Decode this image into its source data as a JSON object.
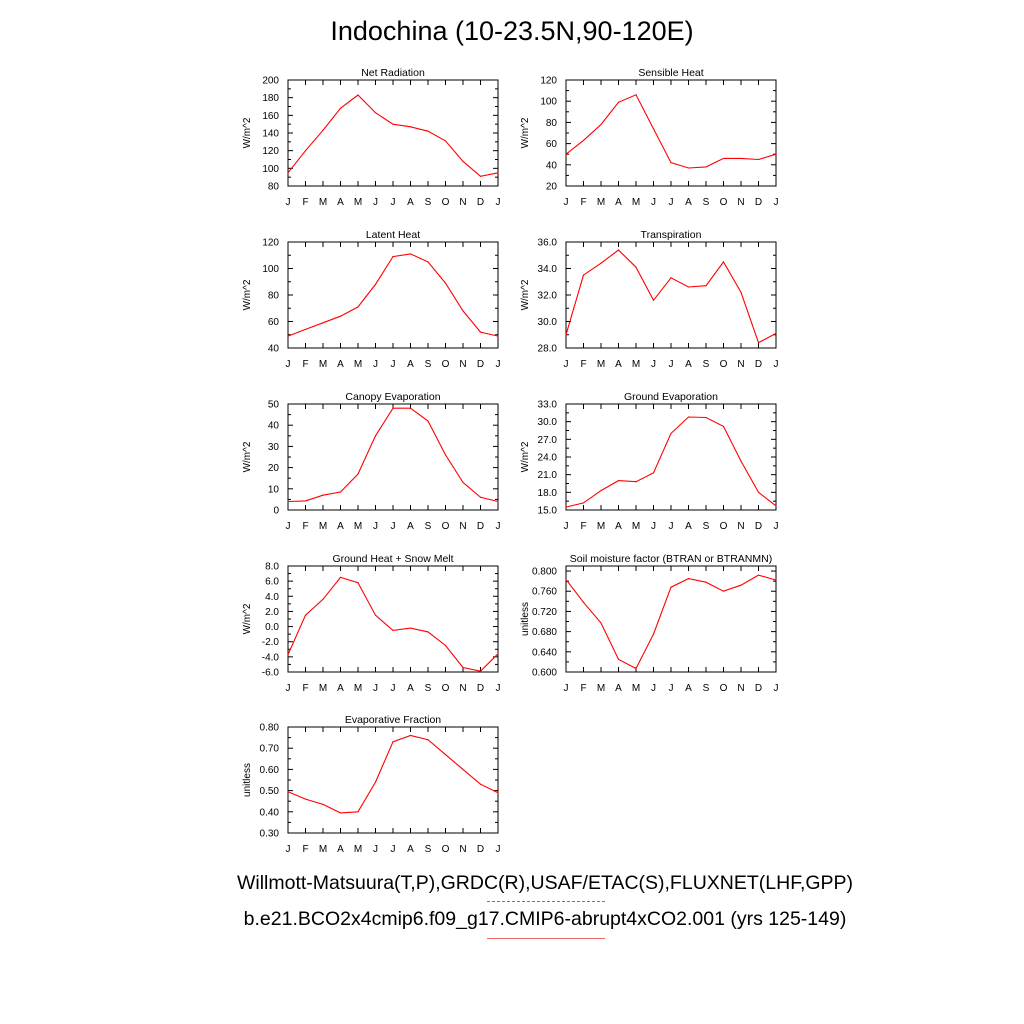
{
  "title": "Indochina (10-23.5N,90-120E)",
  "footer": {
    "observations": "Willmott-Matsuura(T,P),GRDC(R),USAF/ETAC(S),FLUXNET(LHF,GPP)",
    "model": "b.e21.BCO2x4cmip6.f09_g17.CMIP6-abrupt4xCO2.001 (yrs 125-149)"
  },
  "colors": {
    "series": "#ff0000",
    "axis": "#000000",
    "obs_legend": "#6a6af0",
    "model_legend": "#f06a6a"
  },
  "months": [
    "J",
    "F",
    "M",
    "A",
    "M",
    "J",
    "J",
    "A",
    "S",
    "O",
    "N",
    "D",
    "J"
  ],
  "chart_data": [
    {
      "type": "line",
      "title": "Net Radiation",
      "ylabel": "W/m^2",
      "ylim": [
        80,
        200
      ],
      "yticks": [
        80,
        100,
        120,
        140,
        160,
        180,
        200
      ],
      "ytick_labels": [
        "80",
        "100",
        "120",
        "140",
        "160",
        "180",
        "200"
      ],
      "values": [
        95,
        120,
        143,
        168,
        183,
        163,
        150,
        147,
        142,
        131,
        108,
        91,
        95
      ]
    },
    {
      "type": "line",
      "title": "Sensible Heat",
      "ylabel": "W/m^2",
      "ylim": [
        20,
        120
      ],
      "yticks": [
        20,
        40,
        60,
        80,
        100,
        120
      ],
      "ytick_labels": [
        "20",
        "40",
        "60",
        "80",
        "100",
        "120"
      ],
      "values": [
        50,
        63,
        78,
        99,
        106,
        74,
        42,
        37,
        38,
        46,
        46,
        45,
        50
      ]
    },
    {
      "type": "line",
      "title": "Latent Heat",
      "ylabel": "W/m^2",
      "ylim": [
        40,
        120
      ],
      "yticks": [
        40,
        60,
        80,
        100,
        120
      ],
      "ytick_labels": [
        "40",
        "60",
        "80",
        "100",
        "120"
      ],
      "values": [
        49,
        54,
        59,
        64,
        71,
        88,
        109,
        111,
        105,
        89,
        68,
        52,
        49
      ]
    },
    {
      "type": "line",
      "title": "Transpiration",
      "ylabel": "W/m^2",
      "ylim": [
        28,
        36
      ],
      "yticks": [
        28,
        30,
        32,
        34,
        36
      ],
      "ytick_labels": [
        "28.0",
        "30.0",
        "32.0",
        "34.0",
        "36.0"
      ],
      "values": [
        29.0,
        33.5,
        34.4,
        35.4,
        34.1,
        31.6,
        33.3,
        32.6,
        32.7,
        34.5,
        32.2,
        28.4,
        29.1
      ]
    },
    {
      "type": "line",
      "title": "Canopy Evaporation",
      "ylabel": "W/m^2",
      "ylim": [
        0,
        50
      ],
      "yticks": [
        0,
        10,
        20,
        30,
        40,
        50
      ],
      "ytick_labels": [
        "0",
        "10",
        "20",
        "30",
        "40",
        "50"
      ],
      "values": [
        4,
        4.3,
        7,
        8.5,
        17,
        35,
        48,
        48,
        42,
        26,
        13,
        6,
        4
      ]
    },
    {
      "type": "line",
      "title": "Ground Evaporation",
      "ylabel": "W/m^2",
      "ylim": [
        15,
        33
      ],
      "yticks": [
        15,
        18,
        21,
        24,
        27,
        30,
        33
      ],
      "ytick_labels": [
        "15.0",
        "18.0",
        "21.0",
        "24.0",
        "27.0",
        "30.0",
        "33.0"
      ],
      "values": [
        15.5,
        16.2,
        18.3,
        20.0,
        19.8,
        21.3,
        28.0,
        30.8,
        30.7,
        29.2,
        23.3,
        18.0,
        15.7
      ]
    },
    {
      "type": "line",
      "title": "Ground Heat + Snow Melt",
      "ylabel": "W/m^2",
      "ylim": [
        -6,
        8
      ],
      "yticks": [
        -6,
        -4,
        -2,
        0,
        2,
        4,
        6,
        8
      ],
      "ytick_labels": [
        "-6.0",
        "-4.0",
        "-2.0",
        "0.0",
        "2.0",
        "4.0",
        "6.0",
        "8.0"
      ],
      "values": [
        -3.7,
        1.5,
        3.6,
        6.5,
        5.8,
        1.5,
        -0.5,
        -0.2,
        -0.7,
        -2.5,
        -5.4,
        -5.9,
        -3.6
      ]
    },
    {
      "type": "line",
      "title": "Soil moisture factor (BTRAN or BTRANMN)",
      "ylabel": "unitless",
      "ylim": [
        0.6,
        0.81
      ],
      "yticks": [
        0.6,
        0.64,
        0.68,
        0.72,
        0.76,
        0.8
      ],
      "ytick_labels": [
        "0.600",
        "0.640",
        "0.680",
        "0.720",
        "0.760",
        "0.800"
      ],
      "values": [
        0.783,
        0.738,
        0.697,
        0.625,
        0.607,
        0.675,
        0.768,
        0.785,
        0.778,
        0.76,
        0.772,
        0.792,
        0.782
      ]
    },
    {
      "type": "line",
      "title": "Evaporative Fraction",
      "ylabel": "unitless",
      "ylim": [
        0.3,
        0.8
      ],
      "yticks": [
        0.3,
        0.4,
        0.5,
        0.6,
        0.7,
        0.8
      ],
      "ytick_labels": [
        "0.30",
        "0.40",
        "0.50",
        "0.60",
        "0.70",
        "0.80"
      ],
      "values": [
        0.495,
        0.46,
        0.435,
        0.395,
        0.4,
        0.54,
        0.73,
        0.76,
        0.74,
        0.67,
        0.6,
        0.53,
        0.49
      ]
    }
  ]
}
